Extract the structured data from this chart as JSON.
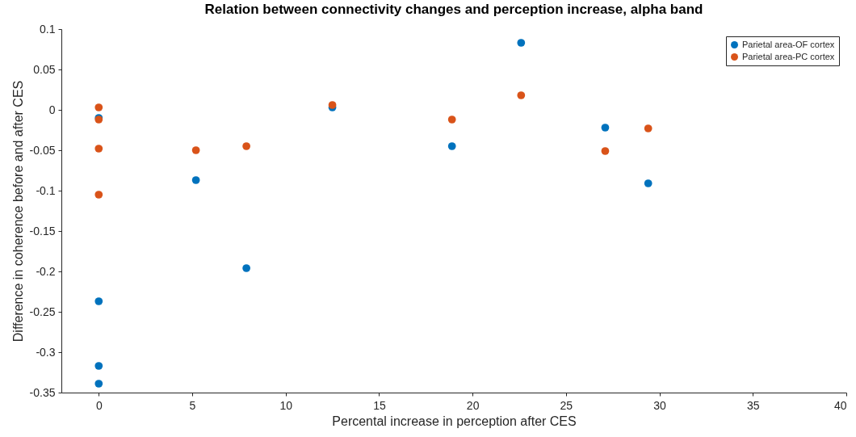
{
  "chart_data": {
    "type": "scatter",
    "title": "Relation between connectivity changes and perception increase, alpha band",
    "xlabel": "Percental increase in perception after CES",
    "ylabel": "Difference in coherence before and after CES",
    "xlim": [
      -2,
      40
    ],
    "xticks": [
      0,
      5,
      10,
      15,
      20,
      25,
      30,
      35,
      40
    ],
    "ylim": [
      -0.35,
      0.1
    ],
    "yticks": [
      -0.35,
      -0.3,
      -0.25,
      -0.2,
      -0.15,
      -0.1,
      -0.05,
      0,
      0.05,
      0.1
    ],
    "grid": false,
    "legend": "top right",
    "marker": "circle",
    "series": [
      {
        "name": "Parietal area-OF cortex",
        "color": "#0072bd",
        "x": [
          0,
          0,
          0,
          0,
          5.2,
          7.9,
          12.5,
          18.9,
          22.6,
          27.1,
          29.4
        ],
        "values": [
          -0.01,
          -0.237,
          -0.317,
          -0.339,
          -0.087,
          -0.196,
          0.003,
          -0.045,
          0.083,
          -0.022,
          -0.091
        ]
      },
      {
        "name": "Parietal area-PC cortex",
        "color": "#d95319",
        "x": [
          0,
          0,
          0,
          0,
          5.2,
          7.9,
          12.5,
          18.9,
          22.6,
          27.1,
          29.4
        ],
        "values": [
          0.003,
          -0.012,
          -0.048,
          -0.105,
          -0.05,
          -0.045,
          0.006,
          -0.012,
          0.018,
          -0.051,
          -0.023
        ]
      }
    ]
  }
}
